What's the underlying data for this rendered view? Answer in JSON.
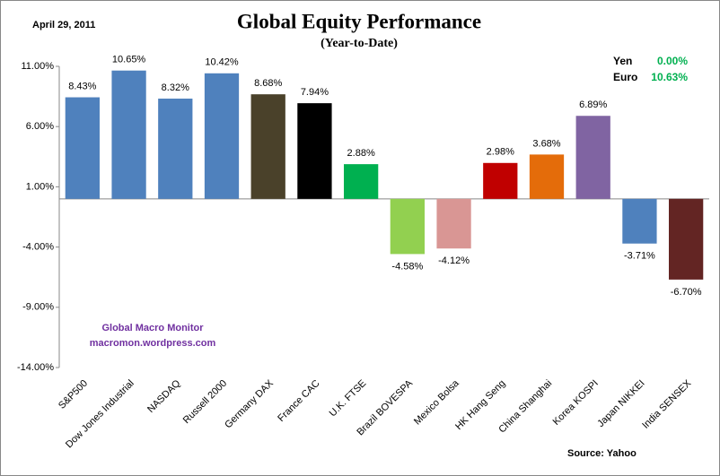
{
  "chart_data": {
    "type": "bar",
    "date": "April 29, 2011",
    "title": "Global Equity Performance",
    "subtitle": "(Year-to-Date)",
    "categories": [
      "S&P500",
      "Dow Jones Industrial",
      "NASDAQ",
      "Russell 2000",
      "Germany DAX",
      "France CAC",
      "U.K. FTSE",
      "Brazil BOVESPA",
      "Mexico Bolsa",
      "HK Hang Seng",
      "China Shanghai",
      "Korea KOSPI",
      "Japan NIKKEI",
      "India SENSEX"
    ],
    "values": [
      8.43,
      10.65,
      8.32,
      10.42,
      8.68,
      7.94,
      2.88,
      -4.58,
      -4.12,
      2.98,
      3.68,
      6.89,
      -3.71,
      -6.7
    ],
    "value_labels": [
      "8.43%",
      "10.65%",
      "8.32%",
      "10.42%",
      "8.68%",
      "7.94%",
      "2.88%",
      "-4.58%",
      "-4.12%",
      "2.98%",
      "3.68%",
      "6.89%",
      "-3.71%",
      "-6.70%"
    ],
    "colors": [
      "#4f81bd",
      "#4f81bd",
      "#4f81bd",
      "#4f81bd",
      "#4a412a",
      "#000000",
      "#00b050",
      "#92d050",
      "#d99694",
      "#c00000",
      "#e46c0a",
      "#8064a2",
      "#4f81bd",
      "#632523"
    ],
    "ylim": [
      -14,
      11
    ],
    "yticks": [
      {
        "value": 11,
        "label": "11.00%"
      },
      {
        "value": 6,
        "label": "6.00%"
      },
      {
        "value": 1,
        "label": "1.00%"
      },
      {
        "value": -4,
        "label": "-4.00%"
      },
      {
        "value": -9,
        "label": "-9.00%"
      },
      {
        "value": -14,
        "label": "-14.00%"
      }
    ],
    "currencies": [
      {
        "name": "Yen",
        "label": "0.00%"
      },
      {
        "name": "Euro",
        "label": "10.63%"
      }
    ],
    "watermark": [
      "Global Macro Monitor",
      "macromon.wordpress.com"
    ],
    "source": "Source:  Yahoo"
  }
}
